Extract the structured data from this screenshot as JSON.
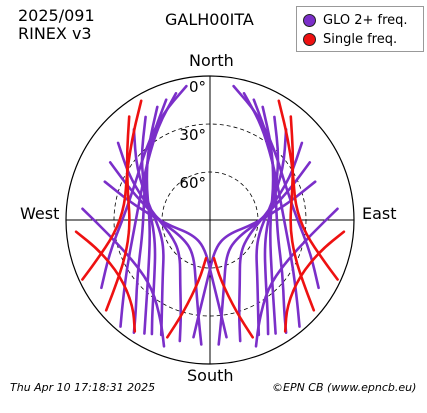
{
  "header": {
    "date": "2025/091",
    "format": "RINEX v3",
    "station": "GALH00ITA"
  },
  "legend": {
    "items": [
      {
        "label": "GLO 2+ freq.",
        "color": "#7b2fc9"
      },
      {
        "label": "Single freq.",
        "color": "#ee1111"
      }
    ]
  },
  "footer": {
    "timestamp": "Thu Apr 10 17:18:31 2025",
    "credit": "©EPN CB (www.epncb.eu)"
  },
  "chart_data": {
    "type": "polar-skyplot",
    "directions": {
      "north": "North",
      "south": "South",
      "east": "East",
      "west": "West"
    },
    "elevation_rings": [
      {
        "elev": 0,
        "label": "0°",
        "style": "solid"
      },
      {
        "elev": 30,
        "label": "30°",
        "style": "dashed"
      },
      {
        "elev": 60,
        "label": "60°",
        "style": "dashed"
      }
    ],
    "elevation_range": [
      0,
      90
    ],
    "azimuth_range": [
      0,
      360
    ],
    "series": [
      {
        "name": "GLO 2+ freq.",
        "color": "#7b2fc9",
        "tracks": [
          [
            [
              335,
              12
            ],
            [
              320,
              30
            ],
            [
              300,
              44
            ],
            [
              275,
              52
            ],
            [
              250,
              50
            ],
            [
              228,
              38
            ],
            [
              215,
              20
            ],
            [
              210,
              8
            ]
          ],
          [
            [
              340,
              10
            ],
            [
              326,
              26
            ],
            [
              306,
              40
            ],
            [
              280,
              48
            ],
            [
              255,
              46
            ],
            [
              234,
              34
            ],
            [
              220,
              18
            ],
            [
              214,
              5
            ]
          ],
          [
            [
              328,
              14
            ],
            [
              312,
              32
            ],
            [
              292,
              46
            ],
            [
              268,
              54
            ],
            [
              244,
              52
            ],
            [
              224,
              40
            ],
            [
              212,
              22
            ],
            [
              207,
              10
            ]
          ],
          [
            [
              345,
              8
            ],
            [
              332,
              22
            ],
            [
              314,
              36
            ],
            [
              288,
              44
            ],
            [
              262,
              42
            ],
            [
              240,
              30
            ],
            [
              226,
              14
            ],
            [
              220,
              3
            ]
          ],
          [
            [
              320,
              16
            ],
            [
              305,
              34
            ],
            [
              285,
              50
            ],
            [
              260,
              58
            ],
            [
              238,
              56
            ],
            [
              220,
              44
            ],
            [
              208,
              26
            ],
            [
              203,
              12
            ]
          ],
          [
            [
              310,
              15
            ],
            [
              298,
              33
            ],
            [
              280,
              52
            ],
            [
              250,
              64
            ],
            [
              222,
              62
            ],
            [
              205,
              46
            ],
            [
              197,
              28
            ],
            [
              194,
              12
            ]
          ],
          [
            [
              300,
              18
            ],
            [
              290,
              38
            ],
            [
              270,
              58
            ],
            [
              235,
              70
            ],
            [
              205,
              66
            ],
            [
              192,
              48
            ],
            [
              187,
              30
            ],
            [
              184,
              12
            ]
          ],
          [
            [
              25,
              12
            ],
            [
              40,
              30
            ],
            [
              60,
              44
            ],
            [
              85,
              52
            ],
            [
              110,
              50
            ],
            [
              132,
              38
            ],
            [
              145,
              20
            ],
            [
              150,
              8
            ]
          ],
          [
            [
              20,
              10
            ],
            [
              34,
              26
            ],
            [
              54,
              40
            ],
            [
              80,
              48
            ],
            [
              105,
              46
            ],
            [
              126,
              34
            ],
            [
              140,
              18
            ],
            [
              146,
              5
            ]
          ],
          [
            [
              32,
              14
            ],
            [
              48,
              32
            ],
            [
              68,
              46
            ],
            [
              92,
              54
            ],
            [
              116,
              52
            ],
            [
              136,
              40
            ],
            [
              148,
              22
            ],
            [
              153,
              10
            ]
          ],
          [
            [
              15,
              8
            ],
            [
              28,
              22
            ],
            [
              46,
              36
            ],
            [
              72,
              44
            ],
            [
              98,
              42
            ],
            [
              120,
              30
            ],
            [
              134,
              14
            ],
            [
              140,
              3
            ]
          ],
          [
            [
              40,
              16
            ],
            [
              55,
              34
            ],
            [
              75,
              50
            ],
            [
              100,
              58
            ],
            [
              122,
              56
            ],
            [
              140,
              44
            ],
            [
              152,
              26
            ],
            [
              157,
              12
            ]
          ],
          [
            [
              50,
              15
            ],
            [
              62,
              33
            ],
            [
              80,
              52
            ],
            [
              110,
              64
            ],
            [
              138,
              62
            ],
            [
              155,
              46
            ],
            [
              163,
              28
            ],
            [
              166,
              12
            ]
          ],
          [
            [
              60,
              18
            ],
            [
              70,
              38
            ],
            [
              90,
              58
            ],
            [
              125,
              70
            ],
            [
              155,
              66
            ],
            [
              168,
              48
            ],
            [
              173,
              30
            ],
            [
              176,
              12
            ]
          ],
          [
            [
              290,
              20
            ],
            [
              282,
              40
            ],
            [
              265,
              62
            ],
            [
              230,
              76
            ],
            [
              190,
              72
            ],
            [
              178,
              54
            ],
            [
              174,
              36
            ],
            [
              172,
              16
            ]
          ],
          [
            [
              70,
              20
            ],
            [
              78,
              40
            ],
            [
              95,
              62
            ],
            [
              130,
              76
            ],
            [
              170,
              72
            ],
            [
              182,
              54
            ],
            [
              186,
              36
            ],
            [
              188,
              16
            ]
          ],
          [
            [
              275,
              10
            ],
            [
              262,
              26
            ],
            [
              240,
              36
            ],
            [
              220,
              34
            ],
            [
              206,
              20
            ],
            [
              200,
              6
            ]
          ],
          [
            [
              85,
              10
            ],
            [
              98,
              26
            ],
            [
              120,
              36
            ],
            [
              140,
              34
            ],
            [
              154,
              20
            ],
            [
              160,
              6
            ]
          ],
          [
            [
              350,
              5
            ],
            [
              335,
              18
            ],
            [
              318,
              30
            ],
            [
              296,
              38
            ],
            [
              272,
              36
            ],
            [
              252,
              24
            ],
            [
              238,
              10
            ]
          ],
          [
            [
              10,
              5
            ],
            [
              25,
              18
            ],
            [
              42,
              30
            ],
            [
              64,
              38
            ],
            [
              88,
              36
            ],
            [
              108,
              24
            ],
            [
              122,
              10
            ]
          ]
        ]
      },
      {
        "name": "Single freq.",
        "color": "#ee1111",
        "tracks": [
          [
            [
              330,
              4
            ],
            [
              318,
              18
            ],
            [
              300,
              30
            ],
            [
              280,
              36
            ],
            [
              262,
              30
            ],
            [
              250,
              14
            ],
            [
              245,
              2
            ]
          ],
          [
            [
              322,
              8
            ],
            [
              308,
              24
            ],
            [
              288,
              36
            ],
            [
              266,
              40
            ],
            [
              246,
              32
            ],
            [
              234,
              16
            ],
            [
              229,
              4
            ]
          ],
          [
            [
              30,
              4
            ],
            [
              42,
              18
            ],
            [
              60,
              30
            ],
            [
              80,
              36
            ],
            [
              98,
              30
            ],
            [
              110,
              14
            ],
            [
              115,
              2
            ]
          ],
          [
            [
              38,
              8
            ],
            [
              52,
              24
            ],
            [
              72,
              36
            ],
            [
              94,
              40
            ],
            [
              114,
              32
            ],
            [
              126,
              16
            ],
            [
              131,
              4
            ]
          ],
          [
            [
              200,
              12
            ],
            [
              196,
              30
            ],
            [
              190,
              52
            ],
            [
              186,
              66
            ]
          ],
          [
            [
              160,
              12
            ],
            [
              164,
              30
            ],
            [
              170,
              52
            ],
            [
              174,
              66
            ]
          ],
          [
            [
              265,
              6
            ],
            [
              255,
              18
            ],
            [
              238,
              24
            ],
            [
              222,
              18
            ],
            [
              214,
              6
            ]
          ],
          [
            [
              95,
              6
            ],
            [
              105,
              18
            ],
            [
              122,
              24
            ],
            [
              138,
              18
            ],
            [
              146,
              6
            ]
          ]
        ]
      }
    ]
  }
}
